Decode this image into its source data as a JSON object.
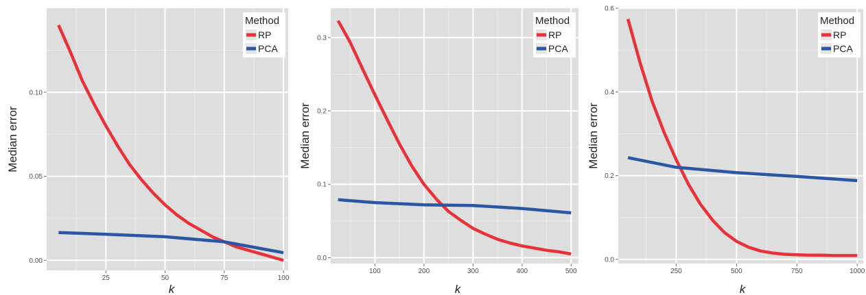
{
  "colors": {
    "panel_bg": "#dedede",
    "grid_major": "#ffffff",
    "grid_minor": "#ececec",
    "rp": "#e8323a",
    "pca": "#2a56a4"
  },
  "chart_data": [
    {
      "type": "line",
      "xlabel": "k",
      "ylabel": "Median error",
      "xlim": [
        0,
        102
      ],
      "ylim": [
        -0.006,
        0.15
      ],
      "x_ticks": [
        25,
        50,
        75,
        100
      ],
      "y_ticks": [
        0.0,
        0.05,
        0.1
      ],
      "y_tick_labels": [
        "0.00",
        "0.05",
        "0.10"
      ],
      "grid": true,
      "legend": {
        "title": "Method",
        "position": "top-right"
      },
      "series": [
        {
          "name": "RP",
          "color": "#e8323a",
          "x": [
            5,
            10,
            15,
            20,
            25,
            30,
            35,
            40,
            45,
            50,
            55,
            60,
            65,
            70,
            75,
            80,
            85,
            90,
            95,
            100
          ],
          "y": [
            0.14,
            0.124,
            0.107,
            0.093,
            0.08,
            0.068,
            0.057,
            0.048,
            0.04,
            0.033,
            0.027,
            0.022,
            0.018,
            0.014,
            0.011,
            0.008,
            0.006,
            0.004,
            0.002,
            0.0
          ]
        },
        {
          "name": "PCA",
          "color": "#2a56a4",
          "x": [
            5,
            25,
            50,
            75,
            100
          ],
          "y": [
            0.0165,
            0.0155,
            0.014,
            0.011,
            0.0045
          ]
        }
      ]
    },
    {
      "type": "line",
      "xlabel": "k",
      "ylabel": "Median error",
      "xlim": [
        10,
        515
      ],
      "ylim": [
        -0.008,
        0.34
      ],
      "x_ticks": [
        100,
        200,
        300,
        400,
        500
      ],
      "y_ticks": [
        0.0,
        0.1,
        0.2,
        0.3
      ],
      "y_tick_labels": [
        "0.0",
        "0.1",
        "0.2",
        "0.3"
      ],
      "grid": true,
      "legend": {
        "title": "Method",
        "position": "top-right"
      },
      "series": [
        {
          "name": "RP",
          "color": "#e8323a",
          "x": [
            25,
            50,
            75,
            100,
            125,
            150,
            175,
            200,
            225,
            250,
            275,
            300,
            325,
            350,
            375,
            400,
            425,
            450,
            475,
            500
          ],
          "y": [
            0.323,
            0.293,
            0.257,
            0.222,
            0.188,
            0.155,
            0.125,
            0.1,
            0.08,
            0.063,
            0.051,
            0.04,
            0.032,
            0.025,
            0.02,
            0.016,
            0.013,
            0.01,
            0.008,
            0.005
          ]
        },
        {
          "name": "PCA",
          "color": "#2a56a4",
          "x": [
            25,
            100,
            200,
            300,
            400,
            500
          ],
          "y": [
            0.079,
            0.075,
            0.072,
            0.071,
            0.067,
            0.061
          ]
        }
      ]
    },
    {
      "type": "line",
      "xlabel": "k",
      "ylabel": "Median error",
      "xlim": [
        10,
        1025
      ],
      "ylim": [
        -0.01,
        0.6
      ],
      "x_ticks": [
        250,
        500,
        750,
        1000
      ],
      "y_ticks": [
        0.0,
        0.2,
        0.4,
        0.6
      ],
      "y_tick_labels": [
        "0.0",
        "0.2",
        "0.4",
        "0.6"
      ],
      "grid": true,
      "legend": {
        "title": "Method",
        "position": "top-right"
      },
      "series": [
        {
          "name": "RP",
          "color": "#e8323a",
          "x": [
            50,
            100,
            150,
            200,
            250,
            300,
            350,
            400,
            450,
            500,
            550,
            600,
            650,
            700,
            750,
            800,
            850,
            900,
            950,
            1000
          ],
          "y": [
            0.574,
            0.47,
            0.378,
            0.303,
            0.238,
            0.18,
            0.132,
            0.094,
            0.064,
            0.043,
            0.029,
            0.02,
            0.015,
            0.012,
            0.011,
            0.01,
            0.01,
            0.009,
            0.009,
            0.009
          ]
        },
        {
          "name": "PCA",
          "color": "#2a56a4",
          "x": [
            50,
            250,
            500,
            750,
            1000
          ],
          "y": [
            0.243,
            0.22,
            0.207,
            0.198,
            0.188
          ]
        }
      ]
    }
  ]
}
